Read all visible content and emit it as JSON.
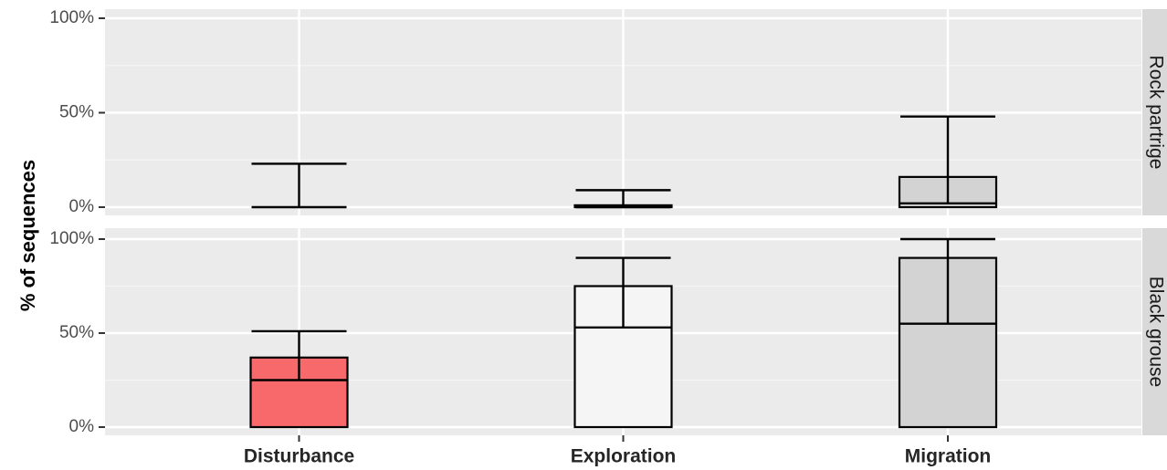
{
  "chart_data": {
    "type": "bar",
    "ylabel": "% of sequences",
    "xlabel": "",
    "categories": [
      "Disturbance",
      "Exploration",
      "Migration"
    ],
    "category_colors": [
      "#f8696b",
      "#f5f5f5",
      "#d3d3d3"
    ],
    "y_ticks": [
      "0%",
      "50%",
      "100%"
    ],
    "ylim": [
      0,
      100
    ],
    "grid": true,
    "panels": [
      {
        "name": "Rock partrige",
        "values": [
          0,
          1,
          16
        ],
        "error_low": [
          0,
          0,
          2
        ],
        "error_high": [
          23,
          9,
          48
        ]
      },
      {
        "name": "Black grouse",
        "values": [
          37,
          75,
          90
        ],
        "error_low": [
          25,
          53,
          55
        ],
        "error_high": [
          51,
          90,
          100
        ]
      }
    ]
  }
}
